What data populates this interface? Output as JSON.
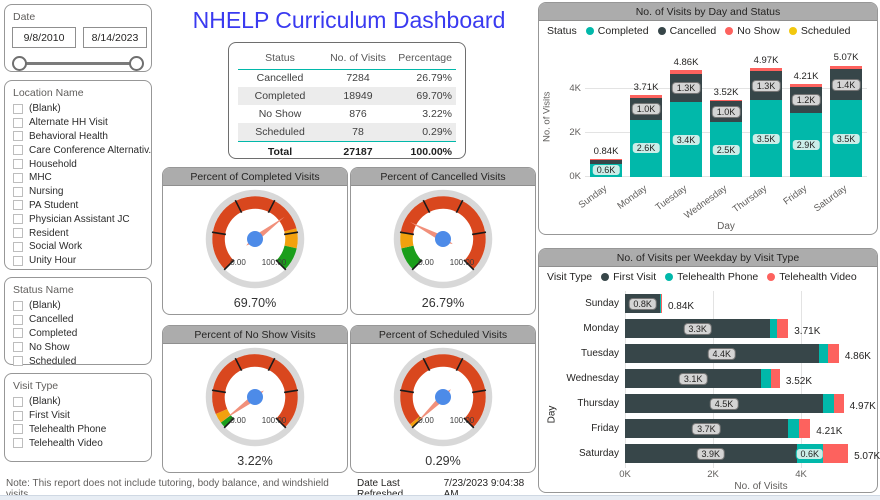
{
  "title": "NHELP Curriculum Dashboard",
  "colors": {
    "completed": "#01B8AA",
    "cancelled": "#374649",
    "no_show": "#FD625E",
    "scheduled": "#F2C80F",
    "gauge_red": "#D9471E",
    "gauge_orange": "#F2A10E",
    "gauge_green": "#1B9E1B",
    "gauge_needle": "#F1907B",
    "gauge_hub": "#4D8BE8",
    "gauge_ring": "#D8D8D8",
    "title_blue": "#3A3AF0",
    "header_bar": "#ACACAC"
  },
  "date_slicer": {
    "label": "Date",
    "start": "9/8/2010",
    "end": "8/14/2023"
  },
  "slicers": [
    {
      "title": "Location Name",
      "items": [
        "(Blank)",
        "Alternate HH Visit",
        "Behavioral Health",
        "Care Conference Alternativ...",
        "Household",
        "MHC",
        "Nursing",
        "PA Student",
        "Physician Assistant JC",
        "Resident",
        "Social Work",
        "Unity Hour"
      ]
    },
    {
      "title": "Status Name",
      "items": [
        "(Blank)",
        "Cancelled",
        "Completed",
        "No Show",
        "Scheduled"
      ]
    },
    {
      "title": "Visit Type",
      "items": [
        "(Blank)",
        "First Visit",
        "Telehealth Phone",
        "Telehealth Video"
      ]
    }
  ],
  "summary_table": {
    "columns": [
      "Status",
      "No. of Visits",
      "Percentage"
    ],
    "rows": [
      [
        "Cancelled",
        "7284",
        "26.79%"
      ],
      [
        "Completed",
        "18949",
        "69.70%"
      ],
      [
        "No Show",
        "876",
        "3.22%"
      ],
      [
        "Scheduled",
        "78",
        "0.29%"
      ]
    ],
    "total": [
      "Total",
      "27187",
      "100.00%"
    ]
  },
  "gauges": [
    {
      "title": "Percent of Completed Visits",
      "value_label": "69.70%",
      "percent": 69.7,
      "min_label": "0.00",
      "max_label": "100.00",
      "zones": [
        {
          "from": 0,
          "to": 78,
          "color": "red"
        },
        {
          "from": 78,
          "to": 88,
          "color": "orange"
        },
        {
          "from": 88,
          "to": 100,
          "color": "green"
        }
      ]
    },
    {
      "title": "Percent of Cancelled Visits",
      "value_label": "26.79%",
      "percent": 26.79,
      "min_label": "0.00",
      "max_label": "100.00",
      "zones": [
        {
          "from": 0,
          "to": 12,
          "color": "green"
        },
        {
          "from": 12,
          "to": 20,
          "color": "orange"
        },
        {
          "from": 20,
          "to": 100,
          "color": "red"
        }
      ]
    },
    {
      "title": "Percent of No Show Visits",
      "value_label": "3.22%",
      "percent": 3.22,
      "min_label": "0.00",
      "max_label": "100.00",
      "zones": [
        {
          "from": 0,
          "to": 3,
          "color": "green"
        },
        {
          "from": 3,
          "to": 8,
          "color": "orange"
        },
        {
          "from": 8,
          "to": 100,
          "color": "red"
        }
      ]
    },
    {
      "title": "Percent of Scheduled Visits",
      "value_label": "0.29%",
      "percent": 0.29,
      "min_label": "0.00",
      "max_label": "100.00",
      "zones": [
        {
          "from": 0,
          "to": 2,
          "color": "orange"
        },
        {
          "from": 2,
          "to": 100,
          "color": "red"
        }
      ]
    }
  ],
  "chart_data": [
    {
      "type": "bar",
      "stacked": true,
      "title": "No. of Visits by Day and Status",
      "legend_title": "Status",
      "legend_position": "top",
      "grid": true,
      "xlabel": "Day",
      "ylabel": "No. of Visits",
      "ylim_k": [
        0,
        5.5
      ],
      "y_ticks": [
        {
          "label": "0K",
          "k": 0
        },
        {
          "label": "2K",
          "k": 2
        },
        {
          "label": "4K",
          "k": 4
        }
      ],
      "categories": [
        "Sunday",
        "Monday",
        "Tuesday",
        "Wednesday",
        "Thursday",
        "Friday",
        "Saturday"
      ],
      "series": [
        {
          "name": "Completed",
          "color": "#01B8AA",
          "chip": "teal",
          "values_k": [
            0.6,
            2.6,
            3.4,
            2.5,
            3.5,
            2.9,
            3.5
          ],
          "labels": [
            "0.6K",
            "2.6K",
            "3.4K",
            "2.5K",
            "3.5K",
            "2.9K",
            "3.5K"
          ]
        },
        {
          "name": "Cancelled",
          "color": "#374649",
          "chip": "gray",
          "values_k": [
            0.19,
            1.0,
            1.3,
            0.95,
            1.3,
            1.2,
            1.4
          ],
          "labels": [
            "",
            "1.0K",
            "1.3K",
            "1.0K",
            "1.3K",
            "1.2K",
            "1.4K"
          ]
        },
        {
          "name": "No Show",
          "color": "#FD625E",
          "chip": "",
          "values_k": [
            0.05,
            0.11,
            0.16,
            0.07,
            0.17,
            0.11,
            0.17
          ],
          "labels": [
            "",
            "",
            "",
            "",
            "",
            "",
            ""
          ]
        },
        {
          "name": "Scheduled",
          "color": "#F2C80F",
          "chip": "",
          "values_k": [
            0,
            0,
            0,
            0,
            0,
            0,
            0
          ],
          "labels": [
            "",
            "",
            "",
            "",
            "",
            "",
            ""
          ]
        }
      ],
      "totals": [
        "0.84K",
        "3.71K",
        "4.86K",
        "3.52K",
        "4.97K",
        "4.21K",
        "5.07K"
      ]
    },
    {
      "type": "bar",
      "stacked": true,
      "orientation": "horizontal",
      "title": "No. of Visits per Weekday by Visit Type",
      "legend_title": "Visit Type",
      "legend_position": "top",
      "grid": true,
      "xlabel": "No. of Visits",
      "ylabel": "Day",
      "xlim_k": [
        0,
        5.7
      ],
      "x_ticks": [
        {
          "label": "0K",
          "k": 0
        },
        {
          "label": "2K",
          "k": 2
        },
        {
          "label": "4K",
          "k": 4
        }
      ],
      "categories": [
        "Sunday",
        "Monday",
        "Tuesday",
        "Wednesday",
        "Thursday",
        "Friday",
        "Saturday"
      ],
      "series": [
        {
          "name": "First Visit",
          "color": "#374649",
          "chip": "gray",
          "values_k": [
            0.8,
            3.3,
            4.4,
            3.1,
            4.5,
            3.7,
            3.9
          ],
          "labels": [
            "0.8K",
            "3.3K",
            "4.4K",
            "3.1K",
            "4.5K",
            "3.7K",
            "3.9K"
          ]
        },
        {
          "name": "Telehealth Phone",
          "color": "#01B8AA",
          "chip": "teal",
          "values_k": [
            0.02,
            0.16,
            0.21,
            0.22,
            0.24,
            0.26,
            0.6
          ],
          "labels": [
            "",
            "",
            "",
            "",
            "",
            "",
            "0.6K"
          ]
        },
        {
          "name": "Telehealth Video",
          "color": "#FD625E",
          "chip": "",
          "values_k": [
            0.02,
            0.25,
            0.25,
            0.2,
            0.23,
            0.25,
            0.57
          ],
          "labels": [
            "",
            "",
            "",
            "",
            "",
            "",
            ""
          ]
        }
      ],
      "totals": [
        "0.84K",
        "3.71K",
        "4.86K",
        "3.52K",
        "4.97K",
        "4.21K",
        "5.07K"
      ]
    }
  ],
  "footer": {
    "note": "Note: This report does not include tutoring, body balance, and windshield visits.",
    "refresh_label": "Date Last Refreshed",
    "refresh_value": "7/23/2023 9:04:38 AM"
  }
}
